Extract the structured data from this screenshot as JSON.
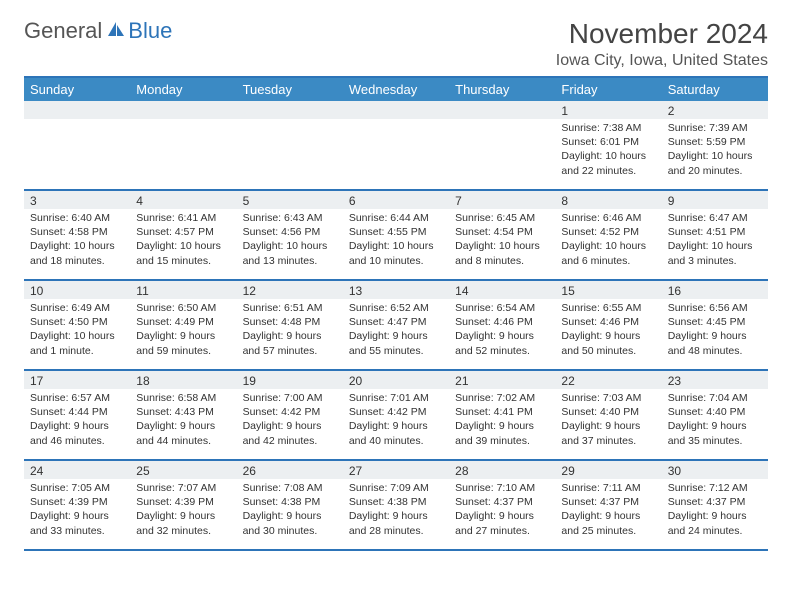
{
  "logo": {
    "text_general": "General",
    "text_blue": "Blue"
  },
  "title": "November 2024",
  "location": "Iowa City, Iowa, United States",
  "colors": {
    "header_bg": "#3b8ac4",
    "header_text": "#ffffff",
    "rule": "#2d74b8",
    "daynum_bg": "#eceff1",
    "text": "#333333"
  },
  "weekdays": [
    "Sunday",
    "Monday",
    "Tuesday",
    "Wednesday",
    "Thursday",
    "Friday",
    "Saturday"
  ],
  "weeks": [
    [
      null,
      null,
      null,
      null,
      null,
      {
        "n": "1",
        "sunrise": "Sunrise: 7:38 AM",
        "sunset": "Sunset: 6:01 PM",
        "day1": "Daylight: 10 hours",
        "day2": "and 22 minutes."
      },
      {
        "n": "2",
        "sunrise": "Sunrise: 7:39 AM",
        "sunset": "Sunset: 5:59 PM",
        "day1": "Daylight: 10 hours",
        "day2": "and 20 minutes."
      }
    ],
    [
      {
        "n": "3",
        "sunrise": "Sunrise: 6:40 AM",
        "sunset": "Sunset: 4:58 PM",
        "day1": "Daylight: 10 hours",
        "day2": "and 18 minutes."
      },
      {
        "n": "4",
        "sunrise": "Sunrise: 6:41 AM",
        "sunset": "Sunset: 4:57 PM",
        "day1": "Daylight: 10 hours",
        "day2": "and 15 minutes."
      },
      {
        "n": "5",
        "sunrise": "Sunrise: 6:43 AM",
        "sunset": "Sunset: 4:56 PM",
        "day1": "Daylight: 10 hours",
        "day2": "and 13 minutes."
      },
      {
        "n": "6",
        "sunrise": "Sunrise: 6:44 AM",
        "sunset": "Sunset: 4:55 PM",
        "day1": "Daylight: 10 hours",
        "day2": "and 10 minutes."
      },
      {
        "n": "7",
        "sunrise": "Sunrise: 6:45 AM",
        "sunset": "Sunset: 4:54 PM",
        "day1": "Daylight: 10 hours",
        "day2": "and 8 minutes."
      },
      {
        "n": "8",
        "sunrise": "Sunrise: 6:46 AM",
        "sunset": "Sunset: 4:52 PM",
        "day1": "Daylight: 10 hours",
        "day2": "and 6 minutes."
      },
      {
        "n": "9",
        "sunrise": "Sunrise: 6:47 AM",
        "sunset": "Sunset: 4:51 PM",
        "day1": "Daylight: 10 hours",
        "day2": "and 3 minutes."
      }
    ],
    [
      {
        "n": "10",
        "sunrise": "Sunrise: 6:49 AM",
        "sunset": "Sunset: 4:50 PM",
        "day1": "Daylight: 10 hours",
        "day2": "and 1 minute."
      },
      {
        "n": "11",
        "sunrise": "Sunrise: 6:50 AM",
        "sunset": "Sunset: 4:49 PM",
        "day1": "Daylight: 9 hours",
        "day2": "and 59 minutes."
      },
      {
        "n": "12",
        "sunrise": "Sunrise: 6:51 AM",
        "sunset": "Sunset: 4:48 PM",
        "day1": "Daylight: 9 hours",
        "day2": "and 57 minutes."
      },
      {
        "n": "13",
        "sunrise": "Sunrise: 6:52 AM",
        "sunset": "Sunset: 4:47 PM",
        "day1": "Daylight: 9 hours",
        "day2": "and 55 minutes."
      },
      {
        "n": "14",
        "sunrise": "Sunrise: 6:54 AM",
        "sunset": "Sunset: 4:46 PM",
        "day1": "Daylight: 9 hours",
        "day2": "and 52 minutes."
      },
      {
        "n": "15",
        "sunrise": "Sunrise: 6:55 AM",
        "sunset": "Sunset: 4:46 PM",
        "day1": "Daylight: 9 hours",
        "day2": "and 50 minutes."
      },
      {
        "n": "16",
        "sunrise": "Sunrise: 6:56 AM",
        "sunset": "Sunset: 4:45 PM",
        "day1": "Daylight: 9 hours",
        "day2": "and 48 minutes."
      }
    ],
    [
      {
        "n": "17",
        "sunrise": "Sunrise: 6:57 AM",
        "sunset": "Sunset: 4:44 PM",
        "day1": "Daylight: 9 hours",
        "day2": "and 46 minutes."
      },
      {
        "n": "18",
        "sunrise": "Sunrise: 6:58 AM",
        "sunset": "Sunset: 4:43 PM",
        "day1": "Daylight: 9 hours",
        "day2": "and 44 minutes."
      },
      {
        "n": "19",
        "sunrise": "Sunrise: 7:00 AM",
        "sunset": "Sunset: 4:42 PM",
        "day1": "Daylight: 9 hours",
        "day2": "and 42 minutes."
      },
      {
        "n": "20",
        "sunrise": "Sunrise: 7:01 AM",
        "sunset": "Sunset: 4:42 PM",
        "day1": "Daylight: 9 hours",
        "day2": "and 40 minutes."
      },
      {
        "n": "21",
        "sunrise": "Sunrise: 7:02 AM",
        "sunset": "Sunset: 4:41 PM",
        "day1": "Daylight: 9 hours",
        "day2": "and 39 minutes."
      },
      {
        "n": "22",
        "sunrise": "Sunrise: 7:03 AM",
        "sunset": "Sunset: 4:40 PM",
        "day1": "Daylight: 9 hours",
        "day2": "and 37 minutes."
      },
      {
        "n": "23",
        "sunrise": "Sunrise: 7:04 AM",
        "sunset": "Sunset: 4:40 PM",
        "day1": "Daylight: 9 hours",
        "day2": "and 35 minutes."
      }
    ],
    [
      {
        "n": "24",
        "sunrise": "Sunrise: 7:05 AM",
        "sunset": "Sunset: 4:39 PM",
        "day1": "Daylight: 9 hours",
        "day2": "and 33 minutes."
      },
      {
        "n": "25",
        "sunrise": "Sunrise: 7:07 AM",
        "sunset": "Sunset: 4:39 PM",
        "day1": "Daylight: 9 hours",
        "day2": "and 32 minutes."
      },
      {
        "n": "26",
        "sunrise": "Sunrise: 7:08 AM",
        "sunset": "Sunset: 4:38 PM",
        "day1": "Daylight: 9 hours",
        "day2": "and 30 minutes."
      },
      {
        "n": "27",
        "sunrise": "Sunrise: 7:09 AM",
        "sunset": "Sunset: 4:38 PM",
        "day1": "Daylight: 9 hours",
        "day2": "and 28 minutes."
      },
      {
        "n": "28",
        "sunrise": "Sunrise: 7:10 AM",
        "sunset": "Sunset: 4:37 PM",
        "day1": "Daylight: 9 hours",
        "day2": "and 27 minutes."
      },
      {
        "n": "29",
        "sunrise": "Sunrise: 7:11 AM",
        "sunset": "Sunset: 4:37 PM",
        "day1": "Daylight: 9 hours",
        "day2": "and 25 minutes."
      },
      {
        "n": "30",
        "sunrise": "Sunrise: 7:12 AM",
        "sunset": "Sunset: 4:37 PM",
        "day1": "Daylight: 9 hours",
        "day2": "and 24 minutes."
      }
    ]
  ]
}
